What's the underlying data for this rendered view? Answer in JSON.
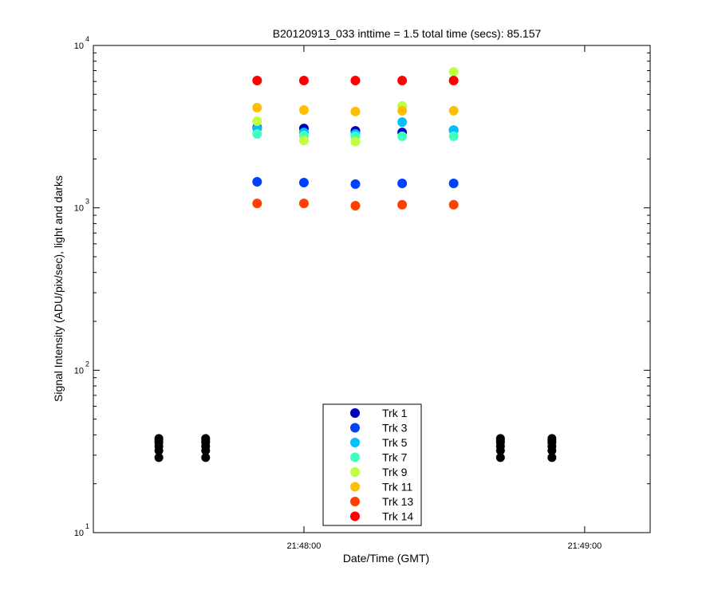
{
  "chart_data": {
    "type": "scatter",
    "title": "B20120913_033 inttime = 1.5 total time (secs): 85.157",
    "x_label": "Date/Time (GMT)",
    "y_label": "Signal Intensity (ADU/pix/sec), light and darks",
    "log_y": true,
    "xlim": [
      "21:47:15",
      "21:49:14"
    ],
    "xticks": [
      "21:48:00",
      "21:49:00"
    ],
    "ylim": [
      10,
      10000
    ],
    "yticks": [
      {
        "value": 10,
        "label": "10",
        "exponent": "1"
      },
      {
        "value": 100,
        "label": "10",
        "exponent": "2"
      },
      {
        "value": 1000,
        "label": "10",
        "exponent": "3"
      },
      {
        "value": 10000,
        "label": "10",
        "exponent": "4"
      }
    ],
    "x": [
      "21:47:50",
      "21:48:00",
      "21:48:11",
      "21:48:21",
      "21:48:32"
    ],
    "series": [
      {
        "name": "Trk 1",
        "color": "#0000bf",
        "values": [
          3120,
          3080,
          2980,
          2910,
          3010
        ]
      },
      {
        "name": "Trk 3",
        "color": "#0040ff",
        "values": [
          1446,
          1430,
          1400,
          1415,
          1415
        ]
      },
      {
        "name": "Trk 5",
        "color": "#00bfff",
        "values": [
          3080,
          2910,
          2850,
          3375,
          3010
        ]
      },
      {
        "name": "Trk 7",
        "color": "#40ffbf",
        "values": [
          2850,
          2790,
          2760,
          2760,
          2760
        ]
      },
      {
        "name": "Trk 9",
        "color": "#bfff40",
        "values": [
          3415,
          2600,
          2560,
          4240,
          6880
        ]
      },
      {
        "name": "Trk 11",
        "color": "#ffbf00",
        "values": [
          4140,
          4000,
          3920,
          3960,
          3960
        ]
      },
      {
        "name": "Trk 13",
        "color": "#ff4000",
        "values": [
          1065,
          1065,
          1030,
          1045,
          1045
        ]
      },
      {
        "name": "Trk 14",
        "color": "#ff0000",
        "values": [
          6080,
          6080,
          6080,
          6080,
          6080
        ]
      }
    ],
    "darks": {
      "color": "#000000",
      "x": [
        "21:47:29",
        "21:47:29",
        "21:47:29",
        "21:47:29",
        "21:47:29",
        "21:47:29",
        "21:47:39",
        "21:47:39",
        "21:47:39",
        "21:47:39",
        "21:47:39",
        "21:47:39",
        "21:48:42",
        "21:48:42",
        "21:48:42",
        "21:48:42",
        "21:48:42",
        "21:48:42",
        "21:48:53",
        "21:48:53",
        "21:48:53",
        "21:48:53",
        "21:48:53",
        "21:48:53"
      ],
      "values": [
        29,
        32,
        34,
        36,
        37,
        38,
        29,
        32,
        34,
        36,
        37,
        38,
        29,
        32,
        34,
        36,
        37,
        38,
        29,
        32,
        34,
        36,
        37,
        38
      ]
    },
    "legend": "lower center"
  }
}
